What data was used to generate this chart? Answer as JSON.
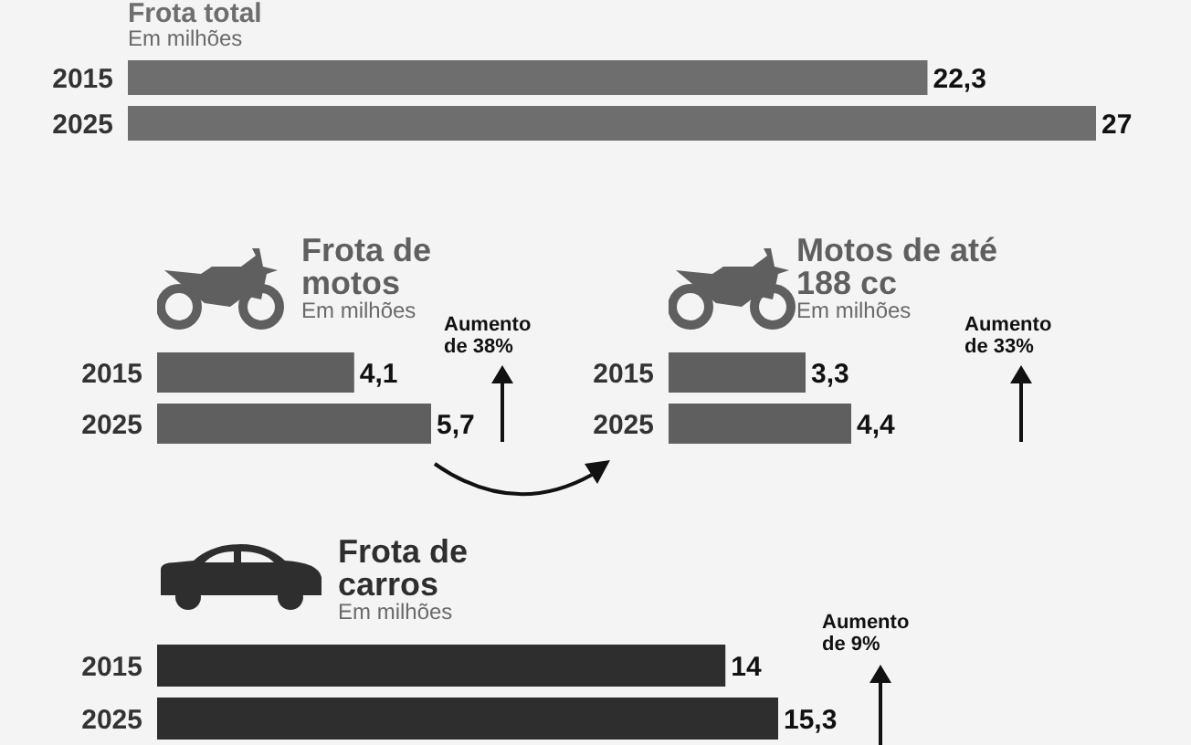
{
  "chart_data": [
    {
      "type": "bar",
      "orientation": "horizontal",
      "title": "Frota total",
      "subtitle": "Em milhões",
      "categories": [
        "2015",
        "2025"
      ],
      "values": [
        22.3,
        27
      ],
      "value_labels": [
        "22,3",
        "27"
      ],
      "color": "#6e6e6e"
    },
    {
      "type": "bar",
      "orientation": "horizontal",
      "title": "Frota de motos",
      "subtitle": "Em milhões",
      "categories": [
        "2015",
        "2025"
      ],
      "values": [
        4.1,
        5.7
      ],
      "value_labels": [
        "4,1",
        "5,7"
      ],
      "color": "#5f5f5f",
      "annotations": [
        "Aumento de 38%"
      ]
    },
    {
      "type": "bar",
      "orientation": "horizontal",
      "title": "Motos de até 188 cc",
      "subtitle": "Em milhões",
      "categories": [
        "2015",
        "2025"
      ],
      "values": [
        3.3,
        4.4
      ],
      "value_labels": [
        "3,3",
        "4,4"
      ],
      "color": "#5f5f5f",
      "annotations": [
        "Aumento de 33%"
      ]
    },
    {
      "type": "bar",
      "orientation": "horizontal",
      "title": "Frota de carros",
      "subtitle": "Em milhões",
      "categories": [
        "2015",
        "2025"
      ],
      "values": [
        14,
        15.3
      ],
      "value_labels": [
        "14",
        "15,3"
      ],
      "color": "#2e2e2e",
      "annotations": [
        "Aumento de 9%"
      ]
    }
  ]
}
